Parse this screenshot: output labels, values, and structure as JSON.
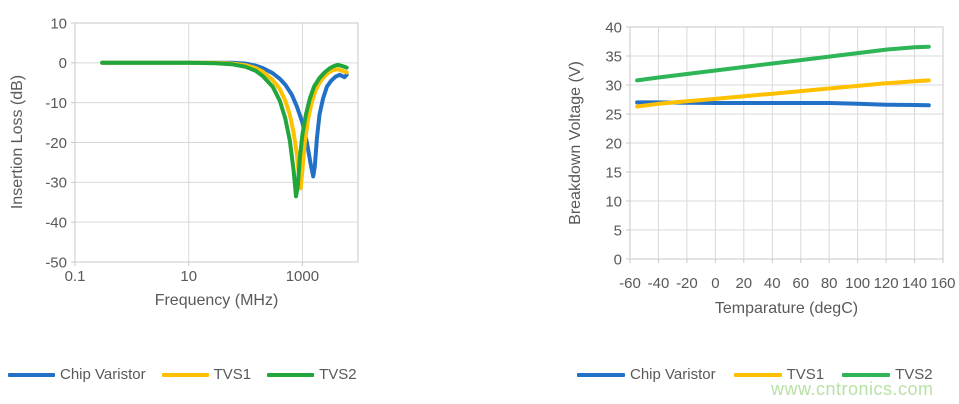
{
  "watermark": {
    "text": "www.cntronics.com",
    "color": "#b5e0a2"
  },
  "style_colors": {
    "axis_text": "#595959",
    "gridline": "#d9d9d9",
    "plot_border": "#c8c8c8",
    "series_blue": "#2271c7",
    "series_yellow": "#ffc000",
    "series_green": "#22a63c"
  },
  "chart_data": [
    {
      "type": "line",
      "title": "",
      "xlabel": "Frequency (MHz)",
      "ylabel": "Insertion Loss (dB)",
      "x_scale": "log",
      "xlim": [
        0.1,
        9500
      ],
      "ylim": [
        -50,
        10
      ],
      "x_ticks": [
        0.1,
        10,
        1000
      ],
      "x_tick_labels": [
        "0.1",
        "10",
        "1000"
      ],
      "y_ticks": [
        10,
        0,
        -10,
        -20,
        -30,
        -40,
        -50
      ],
      "y_tick_labels": [
        "10",
        "0",
        "-10",
        "-20",
        "-30",
        "-40",
        "-50"
      ],
      "grid": true,
      "legend_position": "bottom",
      "series": [
        {
          "name": "Chip Varistor",
          "color": "#2271c7",
          "points": [
            [
              0.3,
              0
            ],
            [
              1,
              0
            ],
            [
              3,
              0
            ],
            [
              10,
              0
            ],
            [
              30,
              0
            ],
            [
              60,
              0
            ],
            [
              100,
              -0.2
            ],
            [
              150,
              -0.7
            ],
            [
              200,
              -1.3
            ],
            [
              300,
              -2.6
            ],
            [
              400,
              -4
            ],
            [
              500,
              -5.5
            ],
            [
              650,
              -8
            ],
            [
              800,
              -11
            ],
            [
              1000,
              -15
            ],
            [
              1200,
              -20
            ],
            [
              1400,
              -25.5
            ],
            [
              1550,
              -28.5
            ],
            [
              1650,
              -26
            ],
            [
              1800,
              -19
            ],
            [
              2000,
              -13
            ],
            [
              2300,
              -9
            ],
            [
              2700,
              -6
            ],
            [
              3200,
              -4.5
            ],
            [
              3800,
              -3.5
            ],
            [
              4500,
              -3
            ],
            [
              5000,
              -3.3
            ],
            [
              5500,
              -3.6
            ],
            [
              6000,
              -3
            ]
          ]
        },
        {
          "name": "TVS1",
          "color": "#ffc000",
          "points": [
            [
              0.3,
              0
            ],
            [
              1,
              0
            ],
            [
              3,
              0
            ],
            [
              10,
              0
            ],
            [
              30,
              0
            ],
            [
              60,
              -0.2
            ],
            [
              100,
              -0.6
            ],
            [
              150,
              -1.3
            ],
            [
              200,
              -2.2
            ],
            [
              300,
              -4.3
            ],
            [
              400,
              -6.6
            ],
            [
              500,
              -9.5
            ],
            [
              600,
              -13
            ],
            [
              700,
              -17.5
            ],
            [
              800,
              -23
            ],
            [
              880,
              -29
            ],
            [
              930,
              -31.5
            ],
            [
              1000,
              -27
            ],
            [
              1100,
              -20
            ],
            [
              1250,
              -14.5
            ],
            [
              1450,
              -10
            ],
            [
              1700,
              -7
            ],
            [
              2000,
              -5
            ],
            [
              2400,
              -3.5
            ],
            [
              2900,
              -2.4
            ],
            [
              3500,
              -1.8
            ],
            [
              4200,
              -1.6
            ],
            [
              5000,
              -2
            ],
            [
              6000,
              -2.4
            ]
          ]
        },
        {
          "name": "TVS2",
          "color": "#22a63c",
          "points": [
            [
              0.3,
              0
            ],
            [
              1,
              0
            ],
            [
              3,
              0
            ],
            [
              10,
              0
            ],
            [
              30,
              -0.1
            ],
            [
              60,
              -0.4
            ],
            [
              100,
              -1
            ],
            [
              150,
              -2
            ],
            [
              200,
              -3.3
            ],
            [
              300,
              -6
            ],
            [
              400,
              -9.5
            ],
            [
              500,
              -14
            ],
            [
              600,
              -19.5
            ],
            [
              700,
              -27
            ],
            [
              770,
              -33.5
            ],
            [
              830,
              -31
            ],
            [
              900,
              -24
            ],
            [
              1000,
              -18
            ],
            [
              1150,
              -13
            ],
            [
              1350,
              -9
            ],
            [
              1600,
              -6
            ],
            [
              2000,
              -3.8
            ],
            [
              2500,
              -2.3
            ],
            [
              3000,
              -1.4
            ],
            [
              3600,
              -0.8
            ],
            [
              4200,
              -0.5
            ],
            [
              5000,
              -0.8
            ],
            [
              6000,
              -1.2
            ]
          ]
        }
      ]
    },
    {
      "type": "line",
      "title": "",
      "xlabel": "Temparature (degC)",
      "ylabel": "Breakdown Voltage (V)",
      "x_scale": "linear",
      "xlim": [
        -60,
        160
      ],
      "ylim": [
        0,
        40
      ],
      "x_ticks": [
        -60,
        -40,
        -20,
        0,
        20,
        40,
        60,
        80,
        100,
        120,
        140,
        160
      ],
      "x_tick_labels": [
        "-60",
        "-40",
        "-20",
        "0",
        "20",
        "40",
        "60",
        "80",
        "100",
        "120",
        "140",
        "160"
      ],
      "y_ticks": [
        0,
        5,
        10,
        15,
        20,
        25,
        30,
        35,
        40
      ],
      "y_tick_labels": [
        "0",
        "5",
        "10",
        "15",
        "20",
        "25",
        "30",
        "35",
        "40"
      ],
      "grid": true,
      "legend_position": "bottom",
      "series": [
        {
          "name": "Chip Varistor",
          "color": "#2271c7",
          "points": [
            [
              -55,
              27.0
            ],
            [
              -40,
              27.0
            ],
            [
              -20,
              26.95
            ],
            [
              0,
              26.9
            ],
            [
              20,
              26.9
            ],
            [
              40,
              26.9
            ],
            [
              60,
              26.9
            ],
            [
              80,
              26.9
            ],
            [
              100,
              26.75
            ],
            [
              120,
              26.6
            ],
            [
              140,
              26.55
            ],
            [
              150,
              26.5
            ]
          ]
        },
        {
          "name": "TVS1",
          "color": "#ffc000",
          "points": [
            [
              -55,
              26.3
            ],
            [
              -40,
              26.75
            ],
            [
              -20,
              27.2
            ],
            [
              0,
              27.6
            ],
            [
              20,
              28.05
            ],
            [
              40,
              28.5
            ],
            [
              60,
              28.95
            ],
            [
              80,
              29.4
            ],
            [
              100,
              29.85
            ],
            [
              120,
              30.3
            ],
            [
              140,
              30.65
            ],
            [
              150,
              30.8
            ]
          ]
        },
        {
          "name": "TVS2",
          "color": "#2db557",
          "points": [
            [
              -55,
              30.8
            ],
            [
              -40,
              31.3
            ],
            [
              -20,
              31.9
            ],
            [
              0,
              32.5
            ],
            [
              20,
              33.1
            ],
            [
              40,
              33.7
            ],
            [
              60,
              34.3
            ],
            [
              80,
              34.9
            ],
            [
              100,
              35.5
            ],
            [
              120,
              36.1
            ],
            [
              140,
              36.5
            ],
            [
              150,
              36.6
            ]
          ]
        }
      ]
    }
  ]
}
